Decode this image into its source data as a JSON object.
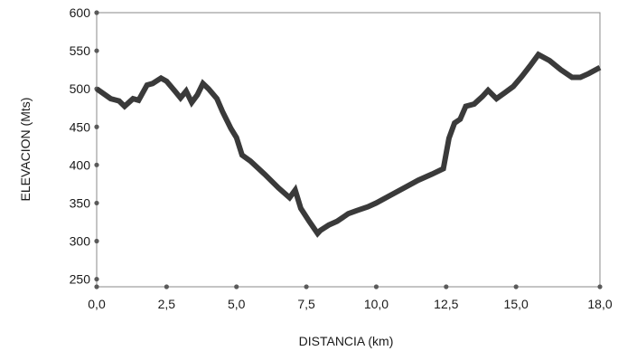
{
  "chart_data": {
    "type": "line",
    "xlabel": "DISTANCIA (km)",
    "ylabel": "ELEVACION (Mts)",
    "xlim": [
      0,
      18
    ],
    "ylim": [
      240,
      600
    ],
    "xticks": [
      0,
      2.5,
      5,
      7.5,
      10,
      12.5,
      15,
      18
    ],
    "xtick_labels": [
      "0,0",
      "2,5",
      "5,0",
      "7,5",
      "10,0",
      "12,5",
      "15,0",
      "18,0"
    ],
    "yticks": [
      250,
      300,
      350,
      400,
      450,
      500,
      550,
      600
    ],
    "ytick_labels": [
      "250",
      "300",
      "350",
      "400",
      "450",
      "500",
      "550",
      "600"
    ],
    "grid": false,
    "legend": "none",
    "line_color": "#3a3a3a",
    "series": [
      {
        "x": [
          0,
          0.5,
          0.8,
          1.0,
          1.3,
          1.5,
          1.8,
          2.0,
          2.3,
          2.5,
          2.8,
          3.0,
          3.2,
          3.4,
          3.6,
          3.8,
          4.0,
          4.3,
          4.5,
          4.8,
          5.0,
          5.2,
          5.5,
          6.0,
          6.5,
          6.9,
          7.1,
          7.3,
          7.6,
          7.9,
          8.0,
          8.3,
          8.6,
          9.0,
          9.3,
          9.7,
          10.0,
          10.5,
          11.0,
          11.5,
          12.0,
          12.4,
          12.6,
          12.8,
          13.0,
          13.2,
          13.5,
          13.8,
          14.0,
          14.3,
          14.6,
          14.9,
          15.2,
          15.5,
          15.8,
          16.2,
          16.6,
          17.0,
          17.3,
          17.6,
          18.0
        ],
        "y": [
          500,
          487,
          484,
          477,
          487,
          485,
          505,
          507,
          514,
          510,
          497,
          488,
          497,
          482,
          492,
          507,
          500,
          487,
          470,
          448,
          436,
          413,
          405,
          388,
          370,
          357,
          367,
          343,
          326,
          310,
          314,
          321,
          326,
          336,
          340,
          345,
          350,
          360,
          370,
          380,
          388,
          395,
          435,
          455,
          460,
          477,
          480,
          490,
          498,
          487,
          495,
          503,
          516,
          530,
          545,
          537,
          525,
          515,
          515,
          520,
          528
        ]
      }
    ]
  }
}
